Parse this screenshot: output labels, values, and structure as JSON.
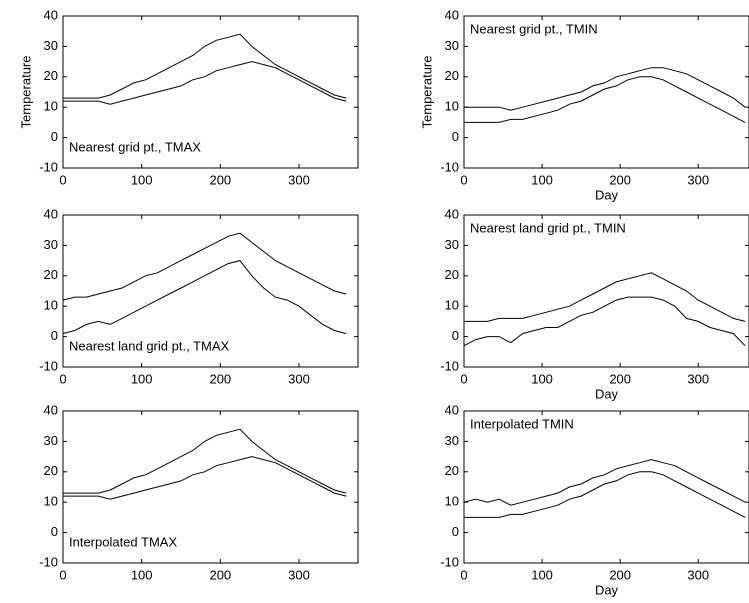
{
  "chart_data": [
    {
      "type": "line",
      "annotation": "Nearest grid pt., TMAX",
      "ylabel": "Temperature",
      "x": [
        0,
        15,
        30,
        45,
        60,
        75,
        90,
        105,
        120,
        135,
        150,
        165,
        180,
        195,
        210,
        225,
        240,
        255,
        270,
        285,
        300,
        315,
        330,
        345,
        360
      ],
      "series": [
        {
          "color": "#000000",
          "values": [
            13,
            13,
            13,
            13,
            14,
            16,
            18,
            19,
            21,
            23,
            25,
            27,
            30,
            32,
            33,
            34,
            30,
            27,
            24,
            22,
            20,
            18,
            16,
            14,
            13
          ]
        },
        {
          "color": "#000000",
          "values": [
            12,
            12,
            12,
            12,
            11,
            12,
            13,
            14,
            15,
            16,
            17,
            19,
            20,
            22,
            23,
            24,
            25,
            24,
            23,
            21,
            19,
            17,
            15,
            13,
            12
          ]
        }
      ],
      "xlim": [
        0,
        375
      ],
      "ylim": [
        -10,
        40
      ],
      "xticks": [
        0,
        100,
        200,
        300
      ],
      "yticks": [
        -10,
        0,
        10,
        20,
        30,
        40
      ]
    },
    {
      "type": "line",
      "annotation": "Nearest grid pt., TMIN",
      "ylabel": "Temperature",
      "xlabel": "Day",
      "x": [
        0,
        15,
        30,
        45,
        60,
        75,
        90,
        105,
        120,
        135,
        150,
        165,
        180,
        195,
        210,
        225,
        240,
        255,
        270,
        285,
        300,
        315,
        330,
        345,
        360
      ],
      "series": [
        {
          "color": "#000000",
          "values": [
            10,
            10,
            10,
            10,
            9,
            10,
            11,
            12,
            13,
            14,
            15,
            17,
            18,
            20,
            21,
            22,
            23,
            23,
            22,
            21,
            19,
            17,
            15,
            13,
            10
          ]
        },
        {
          "color": "#000000",
          "values": [
            5,
            5,
            5,
            5,
            6,
            6,
            7,
            8,
            9,
            11,
            12,
            14,
            16,
            17,
            19,
            20,
            20,
            19,
            17,
            15,
            13,
            11,
            9,
            7,
            5
          ]
        }
      ],
      "xlim": [
        0,
        365
      ],
      "ylim": [
        -10,
        40
      ],
      "xticks": [
        0,
        100,
        200,
        300
      ],
      "yticks": [
        -10,
        0,
        10,
        20,
        30,
        40
      ]
    },
    {
      "type": "line",
      "annotation": "Nearest land grid pt., TMAX",
      "x": [
        0,
        15,
        30,
        45,
        60,
        75,
        90,
        105,
        120,
        135,
        150,
        165,
        180,
        195,
        210,
        225,
        240,
        255,
        270,
        285,
        300,
        315,
        330,
        345,
        360
      ],
      "series": [
        {
          "color": "#000000",
          "values": [
            12,
            13,
            13,
            14,
            15,
            16,
            18,
            20,
            21,
            23,
            25,
            27,
            29,
            31,
            33,
            34,
            31,
            28,
            25,
            23,
            21,
            19,
            17,
            15,
            14
          ]
        },
        {
          "color": "#000000",
          "values": [
            1,
            2,
            4,
            5,
            4,
            6,
            8,
            10,
            12,
            14,
            16,
            18,
            20,
            22,
            24,
            25,
            20,
            16,
            13,
            12,
            10,
            7,
            4,
            2,
            1
          ]
        }
      ],
      "xlim": [
        0,
        375
      ],
      "ylim": [
        -10,
        40
      ],
      "xticks": [
        0,
        100,
        200,
        300
      ],
      "yticks": [
        -10,
        0,
        10,
        20,
        30,
        40
      ]
    },
    {
      "type": "line",
      "annotation": "Nearest land grid pt., TMIN",
      "xlabel": "Day",
      "x": [
        0,
        15,
        30,
        45,
        60,
        75,
        90,
        105,
        120,
        135,
        150,
        165,
        180,
        195,
        210,
        225,
        240,
        255,
        270,
        285,
        300,
        315,
        330,
        345,
        360
      ],
      "series": [
        {
          "color": "#000000",
          "values": [
            5,
            5,
            5,
            6,
            6,
            6,
            7,
            8,
            9,
            10,
            12,
            14,
            16,
            18,
            19,
            20,
            21,
            19,
            17,
            15,
            12,
            10,
            8,
            6,
            5
          ]
        },
        {
          "color": "#000000",
          "values": [
            -3,
            -1,
            0,
            0,
            -2,
            1,
            2,
            3,
            3,
            5,
            7,
            8,
            10,
            12,
            13,
            13,
            13,
            12,
            10,
            6,
            5,
            3,
            2,
            1,
            -3
          ]
        }
      ],
      "xlim": [
        0,
        365
      ],
      "ylim": [
        -10,
        40
      ],
      "xticks": [
        0,
        100,
        200,
        300
      ],
      "yticks": [
        -10,
        0,
        10,
        20,
        30,
        40
      ]
    },
    {
      "type": "line",
      "annotation": "Interpolated TMAX",
      "x": [
        0,
        15,
        30,
        45,
        60,
        75,
        90,
        105,
        120,
        135,
        150,
        165,
        180,
        195,
        210,
        225,
        240,
        255,
        270,
        285,
        300,
        315,
        330,
        345,
        360
      ],
      "series": [
        {
          "color": "#000000",
          "values": [
            13,
            13,
            13,
            13,
            14,
            16,
            18,
            19,
            21,
            23,
            25,
            27,
            30,
            32,
            33,
            34,
            30,
            27,
            24,
            22,
            20,
            18,
            16,
            14,
            13
          ]
        },
        {
          "color": "#000000",
          "values": [
            12,
            12,
            12,
            12,
            11,
            12,
            13,
            14,
            15,
            16,
            17,
            19,
            20,
            22,
            23,
            24,
            25,
            24,
            23,
            21,
            19,
            17,
            15,
            13,
            12
          ]
        }
      ],
      "xlim": [
        0,
        375
      ],
      "ylim": [
        -10,
        40
      ],
      "xticks": [
        0,
        100,
        200,
        300
      ],
      "yticks": [
        -10,
        0,
        10,
        20,
        30,
        40
      ]
    },
    {
      "type": "line",
      "annotation": "Interpolated TMIN",
      "xlabel": "Day",
      "x": [
        0,
        15,
        30,
        45,
        60,
        75,
        90,
        105,
        120,
        135,
        150,
        165,
        180,
        195,
        210,
        225,
        240,
        255,
        270,
        285,
        300,
        315,
        330,
        345,
        360
      ],
      "series": [
        {
          "color": "#000000",
          "values": [
            10,
            11,
            10,
            11,
            9,
            10,
            11,
            12,
            13,
            15,
            16,
            18,
            19,
            21,
            22,
            23,
            24,
            23,
            22,
            20,
            18,
            16,
            14,
            12,
            10
          ]
        },
        {
          "color": "#000000",
          "values": [
            5,
            5,
            5,
            5,
            6,
            6,
            7,
            8,
            9,
            11,
            12,
            14,
            16,
            17,
            19,
            20,
            20,
            19,
            17,
            15,
            13,
            11,
            9,
            7,
            5
          ]
        }
      ],
      "xlim": [
        0,
        365
      ],
      "ylim": [
        -10,
        40
      ],
      "xticks": [
        0,
        100,
        200,
        300
      ],
      "yticks": [
        -10,
        0,
        10,
        20,
        30,
        40
      ]
    }
  ]
}
